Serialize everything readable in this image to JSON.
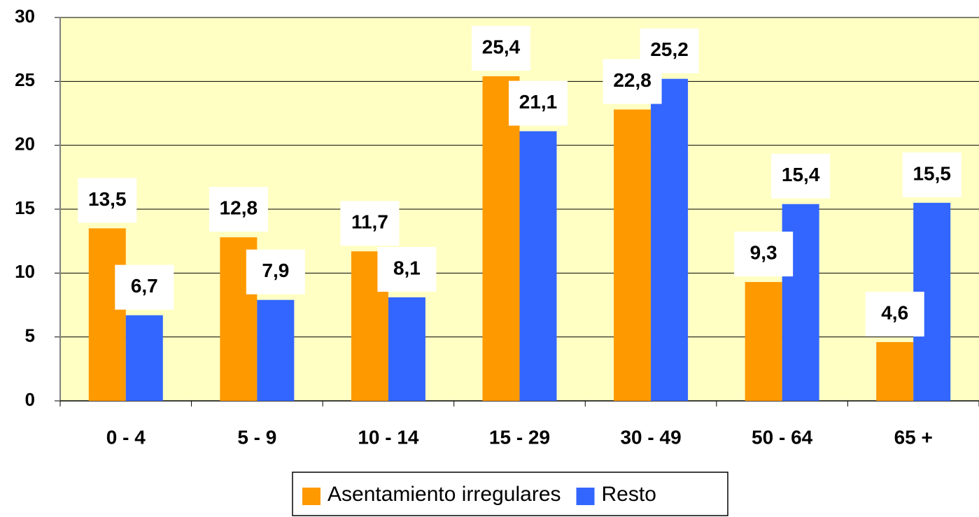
{
  "chart_data": {
    "type": "bar",
    "categories": [
      "0 - 4",
      "5 - 9",
      "10 - 14",
      "15 - 29",
      "30 - 49",
      "50 - 64",
      "65 +"
    ],
    "series": [
      {
        "name": "Asentamiento irregulares",
        "color": "#ff9900",
        "values": [
          13.5,
          12.8,
          11.7,
          25.4,
          22.8,
          9.3,
          4.6
        ],
        "value_labels": [
          "13,5",
          "12,8",
          "11,7",
          "25,4",
          "22,8",
          "9,3",
          "4,6"
        ]
      },
      {
        "name": "Resto",
        "color": "#3366ff",
        "values": [
          6.7,
          7.9,
          8.1,
          21.1,
          25.2,
          15.4,
          15.5
        ],
        "value_labels": [
          "6,7",
          "7,9",
          "8,1",
          "21,1",
          "25,2",
          "15,4",
          "15,5"
        ]
      }
    ],
    "ylim": [
      0,
      30
    ],
    "yticks": [
      0,
      5,
      10,
      15,
      20,
      25,
      30
    ],
    "grid": true,
    "legend": "bottom"
  }
}
